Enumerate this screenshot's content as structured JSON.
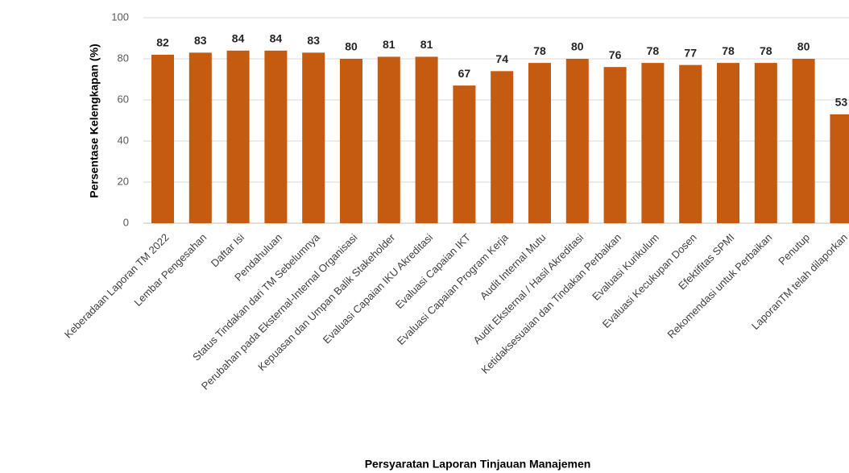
{
  "chart_data": {
    "type": "bar",
    "xlabel": "Persyaratan Laporan Tinjauan Manajemen",
    "ylabel": "Persentase Kelengkapan (%)",
    "categories": [
      "Keberadaan Laporan TM 2022",
      "Lembar Pengesahan",
      "Daftar Isi",
      "Pendahuluan",
      "Status Tindakan dari TM Sebelumnya",
      "Perubahan pada Eksternal-Internal Organisasi",
      "Kepuasan dan Umpan Balik Stakeholder",
      "Evaluasi Capaian IKU Akreditasi",
      "Evaluasi Capaian IKT",
      "Evaluasi Capaian Program Kerja",
      "Audit Internal Mutu",
      "Audit Eksternal / Hasil Akreditasi",
      "Ketidaksesuaian dan Tindakan Perbaikan",
      "Evaluasi Kurikulum",
      "Evaluasi Kecukupan Dosen",
      "Efektifitas SPMI",
      "Rekomendasi untuk Perbaikan",
      "Penutup",
      "LaporanTM telah dilaporkan"
    ],
    "values": [
      82,
      83,
      84,
      84,
      83,
      80,
      81,
      81,
      67,
      74,
      78,
      80,
      76,
      78,
      77,
      78,
      78,
      80,
      53
    ],
    "color": "#c55a11",
    "ylim": [
      0,
      100
    ],
    "yticks": [
      0,
      20,
      40,
      60,
      80,
      100
    ],
    "grid": true
  }
}
